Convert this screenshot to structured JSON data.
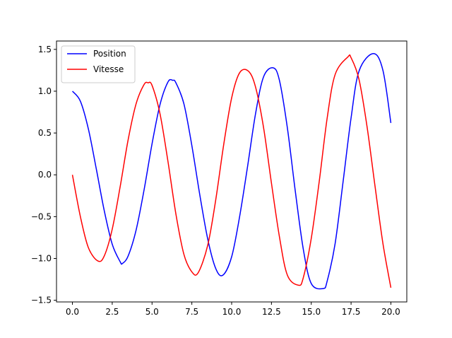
{
  "chart_data": {
    "type": "line",
    "xlim": [
      -1.0,
      21.0
    ],
    "ylim": [
      -1.52,
      1.6
    ],
    "xticks": [
      0.0,
      2.5,
      5.0,
      7.5,
      10.0,
      12.5,
      15.0,
      17.5,
      20.0
    ],
    "yticks": [
      -1.5,
      -1.0,
      -0.5,
      0.0,
      0.5,
      1.0,
      1.5
    ],
    "xtick_labels": [
      "0.0",
      "2.5",
      "5.0",
      "7.5",
      "10.0",
      "12.5",
      "15.0",
      "17.5",
      "20.0"
    ],
    "ytick_labels": [
      "−1.5",
      "−1.0",
      "−0.5",
      "0.0",
      "0.5",
      "1.0",
      "1.5"
    ],
    "grid": false,
    "legend": "upper-left",
    "series": [
      {
        "name": "Position",
        "color": "#0000ff",
        "x": [
          0,
          0.5,
          1,
          1.5,
          2,
          2.5,
          3,
          3.14,
          3.5,
          4,
          4.5,
          5,
          5.5,
          6,
          6.3,
          6.5,
          7,
          7.5,
          8,
          8.5,
          9,
          9.45,
          10,
          10.5,
          11,
          11.5,
          12,
          12.6,
          13,
          13.5,
          14,
          14.5,
          15,
          15.75,
          16,
          16.5,
          17,
          17.5,
          18,
          18.9,
          19.5,
          20
        ],
        "values": [
          1.0,
          0.88,
          0.55,
          0.07,
          -0.43,
          -0.83,
          -1.04,
          -1.06,
          -0.97,
          -0.66,
          -0.18,
          0.37,
          0.84,
          1.11,
          1.13,
          1.1,
          0.85,
          0.35,
          -0.24,
          -0.77,
          -1.12,
          -1.2,
          -0.98,
          -0.5,
          0.1,
          0.73,
          1.17,
          1.28,
          1.13,
          0.56,
          -0.2,
          -0.89,
          -1.3,
          -1.36,
          -1.27,
          -0.82,
          -0.08,
          0.68,
          1.24,
          1.45,
          1.25,
          0.62
        ]
      },
      {
        "name": "Vitesse",
        "color": "#ff0000",
        "x": [
          0,
          0.5,
          1,
          1.6,
          2,
          2.5,
          3,
          3.5,
          4,
          4.5,
          4.75,
          5,
          5.5,
          6,
          6.5,
          7,
          7.5,
          7.9,
          8.5,
          9,
          9.5,
          10,
          10.5,
          11.05,
          11.5,
          12,
          12.5,
          13,
          13.5,
          14.2,
          14.5,
          15,
          15.5,
          16,
          16.5,
          17.3,
          17.5,
          18,
          18.5,
          19,
          19.5,
          20
        ],
        "values": [
          0.0,
          -0.5,
          -0.87,
          -1.03,
          -0.97,
          -0.65,
          -0.14,
          0.42,
          0.85,
          1.08,
          1.1,
          1.07,
          0.73,
          0.16,
          -0.47,
          -0.95,
          -1.16,
          -1.17,
          -0.84,
          -0.3,
          0.36,
          0.92,
          1.22,
          1.24,
          1.05,
          0.57,
          -0.1,
          -0.74,
          -1.2,
          -1.32,
          -1.23,
          -0.76,
          -0.08,
          0.68,
          1.2,
          1.41,
          1.4,
          1.14,
          0.58,
          -0.13,
          -0.82,
          -1.35
        ]
      }
    ]
  }
}
